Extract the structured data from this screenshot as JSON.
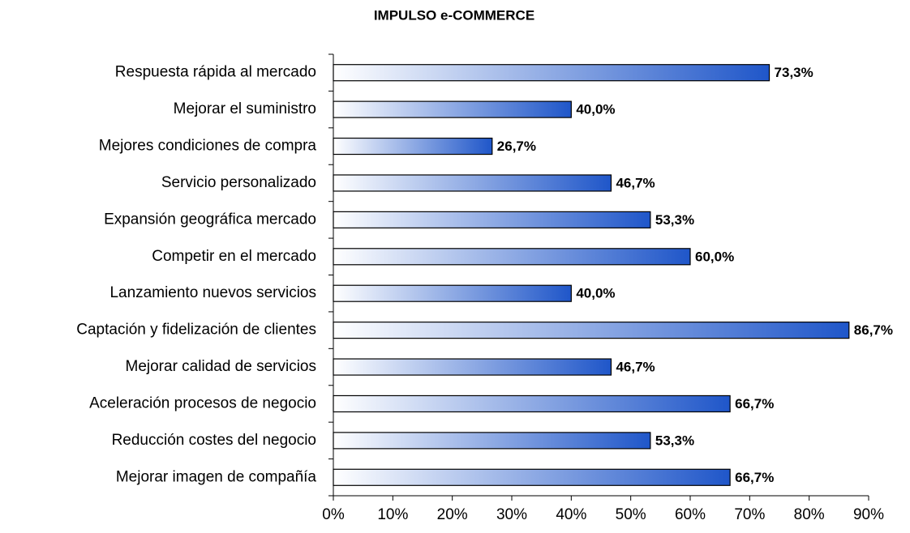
{
  "chart_data": {
    "type": "bar",
    "orientation": "horizontal",
    "title": "IMPULSO e-COMMERCE",
    "categories": [
      "Respuesta rápida al mercado",
      "Mejorar el suministro",
      "Mejores condiciones de compra",
      "Servicio personalizado",
      "Expansión geográfica mercado",
      "Competir en el mercado",
      "Lanzamiento nuevos servicios",
      "Captación y fidelización de clientes",
      "Mejorar calidad de servicios",
      "Aceleración procesos de negocio",
      "Reducción costes del negocio",
      "Mejorar imagen de compañía"
    ],
    "values": [
      73.3,
      40.0,
      26.7,
      46.7,
      53.3,
      60.0,
      40.0,
      86.7,
      46.7,
      66.7,
      53.3,
      66.7
    ],
    "value_labels": [
      "73,3%",
      "40,0%",
      "26,7%",
      "46,7%",
      "53,3%",
      "60,0%",
      "40,0%",
      "86,7%",
      "46,7%",
      "66,7%",
      "53,3%",
      "66,7%"
    ],
    "color": "#1f56c9",
    "xlim": [
      0,
      90
    ],
    "xticks": [
      {
        "value": 0,
        "label": "0%"
      },
      {
        "value": 10,
        "label": "10%"
      },
      {
        "value": 20,
        "label": "20%"
      },
      {
        "value": 30,
        "label": "30%"
      },
      {
        "value": 40,
        "label": "40%"
      },
      {
        "value": 50,
        "label": "50%"
      },
      {
        "value": 60,
        "label": "60%"
      },
      {
        "value": 70,
        "label": "70%"
      },
      {
        "value": 80,
        "label": "80%"
      },
      {
        "value": 90,
        "label": "90%"
      }
    ],
    "grid": false
  }
}
